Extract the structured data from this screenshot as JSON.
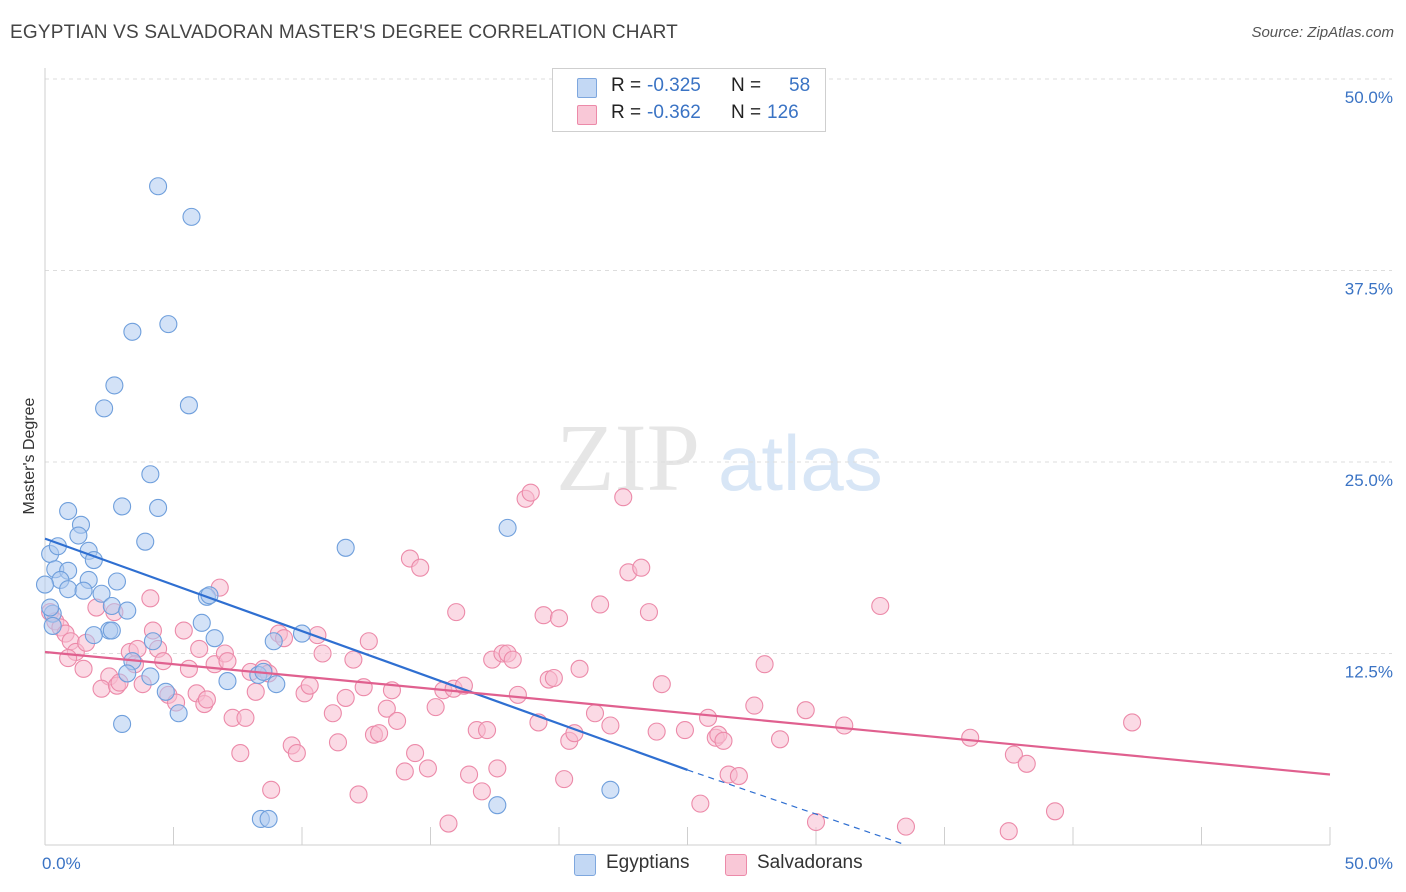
{
  "title": "EGYPTIAN VS SALVADORAN MASTER'S DEGREE CORRELATION CHART",
  "source": "Source: ZipAtlas.com",
  "watermark": {
    "zip": "ZIP",
    "atlas": "atlas"
  },
  "legend": {
    "r_label": "R =",
    "n_label": "N =",
    "egyptians": {
      "r": "-0.325",
      "n": "58"
    },
    "salvadorans": {
      "r": "-0.362",
      "n": "126"
    }
  },
  "colors": {
    "egyptians_fill": "#aecbf0",
    "egyptians_stroke": "#6f9fdc",
    "egyptians_line": "#2f6fd1",
    "salvadorans_fill": "#f8bccf",
    "salvadorans_stroke": "#ec8aa9",
    "salvadorans_line": "#e0608f",
    "grid": "#dddddd",
    "tick_text": "#3a73c4"
  },
  "chart_data": {
    "type": "scatter",
    "title": "EGYPTIAN VS SALVADORAN MASTER'S DEGREE CORRELATION CHART",
    "ylabel": "Master's Degree",
    "xlabel": "",
    "xlim": [
      0,
      50
    ],
    "ylim": [
      0,
      50
    ],
    "x_tick_labels": [
      "0.0%",
      "50.0%"
    ],
    "y_ticks": [
      {
        "value": 12.5,
        "label": "12.5%"
      },
      {
        "value": 25.0,
        "label": "25.0%"
      },
      {
        "value": 37.5,
        "label": "37.5%"
      },
      {
        "value": 50.0,
        "label": "50.0%"
      }
    ],
    "grid": true,
    "legend_position": "top-center",
    "series": [
      {
        "name": "Egyptians",
        "r": -0.325,
        "n": 58,
        "trend": {
          "x0": 0,
          "y0": 20.0,
          "x1": 25,
          "y1": 4.9,
          "dash_x1": 33.5,
          "dash_y1": 0
        },
        "points": [
          [
            4.4,
            43.0
          ],
          [
            5.7,
            41.0
          ],
          [
            3.4,
            33.5
          ],
          [
            4.8,
            34.0
          ],
          [
            2.7,
            30.0
          ],
          [
            2.3,
            28.5
          ],
          [
            5.6,
            28.7
          ],
          [
            4.1,
            24.2
          ],
          [
            3.0,
            22.1
          ],
          [
            4.4,
            22.0
          ],
          [
            0.9,
            21.8
          ],
          [
            1.4,
            20.9
          ],
          [
            1.3,
            20.2
          ],
          [
            3.9,
            19.8
          ],
          [
            0.2,
            19.0
          ],
          [
            0.5,
            19.5
          ],
          [
            1.7,
            19.2
          ],
          [
            1.9,
            18.6
          ],
          [
            0.4,
            18.0
          ],
          [
            0.9,
            17.9
          ],
          [
            0.6,
            17.3
          ],
          [
            1.7,
            17.3
          ],
          [
            2.8,
            17.2
          ],
          [
            0.9,
            16.7
          ],
          [
            1.5,
            16.6
          ],
          [
            2.2,
            16.4
          ],
          [
            6.3,
            16.2
          ],
          [
            6.4,
            16.3
          ],
          [
            0.3,
            15.1
          ],
          [
            0.3,
            14.3
          ],
          [
            2.6,
            15.6
          ],
          [
            3.2,
            15.3
          ],
          [
            6.1,
            14.5
          ],
          [
            2.5,
            14.0
          ],
          [
            2.6,
            14.0
          ],
          [
            1.9,
            13.7
          ],
          [
            3.4,
            12.0
          ],
          [
            4.2,
            13.3
          ],
          [
            6.6,
            13.5
          ],
          [
            8.9,
            13.3
          ],
          [
            10.0,
            13.8
          ],
          [
            11.7,
            19.4
          ],
          [
            3.2,
            11.2
          ],
          [
            4.1,
            11.0
          ],
          [
            7.1,
            10.7
          ],
          [
            8.3,
            11.1
          ],
          [
            8.5,
            11.3
          ],
          [
            9.0,
            10.5
          ],
          [
            4.7,
            10.0
          ],
          [
            5.2,
            8.6
          ],
          [
            3.0,
            7.9
          ],
          [
            18.0,
            20.7
          ],
          [
            17.6,
            2.6
          ],
          [
            22.0,
            3.6
          ],
          [
            8.4,
            1.7
          ],
          [
            8.7,
            1.7
          ],
          [
            0.0,
            17.0
          ],
          [
            0.2,
            15.5
          ]
        ]
      },
      {
        "name": "Salvadorans",
        "r": -0.362,
        "n": 126,
        "trend": {
          "x0": 0,
          "y0": 12.6,
          "x1": 50,
          "y1": 4.6
        },
        "points": [
          [
            0.2,
            15.2
          ],
          [
            0.4,
            14.6
          ],
          [
            0.6,
            14.2
          ],
          [
            0.8,
            13.8
          ],
          [
            1.0,
            13.3
          ],
          [
            1.2,
            12.6
          ],
          [
            1.6,
            13.2
          ],
          [
            0.9,
            12.2
          ],
          [
            1.5,
            11.5
          ],
          [
            2.0,
            15.5
          ],
          [
            2.5,
            11.0
          ],
          [
            2.2,
            10.2
          ],
          [
            2.8,
            10.4
          ],
          [
            2.9,
            10.6
          ],
          [
            2.7,
            15.2
          ],
          [
            3.3,
            12.6
          ],
          [
            3.6,
            12.8
          ],
          [
            3.5,
            11.8
          ],
          [
            3.8,
            10.5
          ],
          [
            4.1,
            16.1
          ],
          [
            4.2,
            14.0
          ],
          [
            4.4,
            12.8
          ],
          [
            4.6,
            12.0
          ],
          [
            4.8,
            9.8
          ],
          [
            5.1,
            9.3
          ],
          [
            5.4,
            14.0
          ],
          [
            5.6,
            11.5
          ],
          [
            5.9,
            9.9
          ],
          [
            6.0,
            12.8
          ],
          [
            6.2,
            9.2
          ],
          [
            6.3,
            9.5
          ],
          [
            6.6,
            11.8
          ],
          [
            6.8,
            16.8
          ],
          [
            7.0,
            12.5
          ],
          [
            7.1,
            12.0
          ],
          [
            7.3,
            8.3
          ],
          [
            7.6,
            6.0
          ],
          [
            7.8,
            8.3
          ],
          [
            8.0,
            11.3
          ],
          [
            8.2,
            10.0
          ],
          [
            8.5,
            11.5
          ],
          [
            8.7,
            11.2
          ],
          [
            8.8,
            3.6
          ],
          [
            9.1,
            13.8
          ],
          [
            9.3,
            13.5
          ],
          [
            9.6,
            6.5
          ],
          [
            9.8,
            6.0
          ],
          [
            10.1,
            9.9
          ],
          [
            10.3,
            10.4
          ],
          [
            10.6,
            13.7
          ],
          [
            10.8,
            12.5
          ],
          [
            11.2,
            8.6
          ],
          [
            11.4,
            6.7
          ],
          [
            11.7,
            9.6
          ],
          [
            12.0,
            12.1
          ],
          [
            12.2,
            3.3
          ],
          [
            12.4,
            10.3
          ],
          [
            12.6,
            13.3
          ],
          [
            12.8,
            7.2
          ],
          [
            13.0,
            7.3
          ],
          [
            13.3,
            8.9
          ],
          [
            13.5,
            10.1
          ],
          [
            13.7,
            8.1
          ],
          [
            14.0,
            4.8
          ],
          [
            14.2,
            18.7
          ],
          [
            14.4,
            6.0
          ],
          [
            14.6,
            18.1
          ],
          [
            14.9,
            5.0
          ],
          [
            15.2,
            9.0
          ],
          [
            15.5,
            10.1
          ],
          [
            15.7,
            1.4
          ],
          [
            15.9,
            10.2
          ],
          [
            16.0,
            15.2
          ],
          [
            16.3,
            10.4
          ],
          [
            16.5,
            4.6
          ],
          [
            16.8,
            7.5
          ],
          [
            17.0,
            3.5
          ],
          [
            17.2,
            7.5
          ],
          [
            17.4,
            12.1
          ],
          [
            17.6,
            5.0
          ],
          [
            17.8,
            12.5
          ],
          [
            18.0,
            12.5
          ],
          [
            18.2,
            12.1
          ],
          [
            18.4,
            9.8
          ],
          [
            18.7,
            22.6
          ],
          [
            18.9,
            23.0
          ],
          [
            19.2,
            8.0
          ],
          [
            19.4,
            15.0
          ],
          [
            19.6,
            10.8
          ],
          [
            19.8,
            10.9
          ],
          [
            20.0,
            14.8
          ],
          [
            20.2,
            4.3
          ],
          [
            20.4,
            6.8
          ],
          [
            20.6,
            7.3
          ],
          [
            20.8,
            11.5
          ],
          [
            21.4,
            8.6
          ],
          [
            21.6,
            15.7
          ],
          [
            22.0,
            7.8
          ],
          [
            22.5,
            22.7
          ],
          [
            22.7,
            17.8
          ],
          [
            23.2,
            18.1
          ],
          [
            23.5,
            15.2
          ],
          [
            23.8,
            7.4
          ],
          [
            24.0,
            10.5
          ],
          [
            24.9,
            7.5
          ],
          [
            25.5,
            2.7
          ],
          [
            25.8,
            8.3
          ],
          [
            26.1,
            7.0
          ],
          [
            26.2,
            7.2
          ],
          [
            26.4,
            6.8
          ],
          [
            26.6,
            4.6
          ],
          [
            27.0,
            4.5
          ],
          [
            27.6,
            9.1
          ],
          [
            28.0,
            11.8
          ],
          [
            28.6,
            6.9
          ],
          [
            29.6,
            8.8
          ],
          [
            30.0,
            1.5
          ],
          [
            31.1,
            7.8
          ],
          [
            32.5,
            15.6
          ],
          [
            33.5,
            1.2
          ],
          [
            36.0,
            7.0
          ],
          [
            37.7,
            5.9
          ],
          [
            38.2,
            5.3
          ],
          [
            39.3,
            2.2
          ],
          [
            42.3,
            8.0
          ],
          [
            37.5,
            0.9
          ]
        ]
      }
    ]
  }
}
